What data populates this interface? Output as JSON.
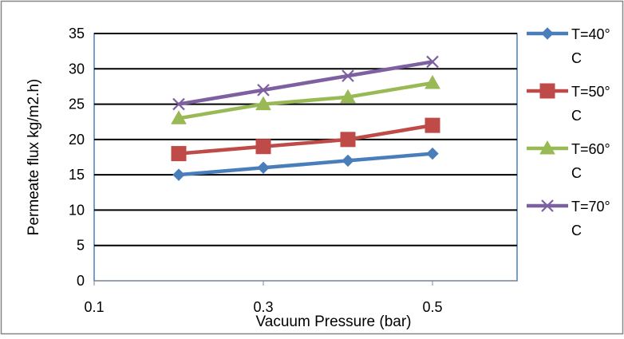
{
  "chart_data": {
    "type": "line",
    "title": "",
    "xlabel": "Vacuum Pressure (bar)",
    "ylabel": "Permeate flux kg/m2.h)",
    "x": [
      0.2,
      0.3,
      0.4,
      0.5
    ],
    "xlim": [
      0.1,
      0.6
    ],
    "ylim": [
      0,
      35
    ],
    "x_ticks": [
      {
        "value": 0.1,
        "label": "0.1"
      },
      {
        "value": 0.3,
        "label": "0.3"
      },
      {
        "value": 0.5,
        "label": "0.5"
      }
    ],
    "y_ticks": [
      {
        "value": 0,
        "label": "0"
      },
      {
        "value": 5,
        "label": "5"
      },
      {
        "value": 10,
        "label": "10"
      },
      {
        "value": 15,
        "label": "15"
      },
      {
        "value": 20,
        "label": "20"
      },
      {
        "value": 25,
        "label": "25"
      },
      {
        "value": 30,
        "label": "30"
      },
      {
        "value": 35,
        "label": "35"
      }
    ],
    "grid": "horizontal",
    "legend_position": "right",
    "series": [
      {
        "name_line1": "T=40°",
        "name_line2": "C",
        "color": "#4a7ebb",
        "marker": "diamond",
        "values": [
          15,
          16,
          17,
          18
        ]
      },
      {
        "name_line1": "T=50°",
        "name_line2": "C",
        "color": "#be4b48",
        "marker": "square",
        "values": [
          18,
          19,
          20,
          22
        ]
      },
      {
        "name_line1": "T=60°",
        "name_line2": "C",
        "color": "#98b954",
        "marker": "triangle",
        "values": [
          23,
          25,
          26,
          28
        ]
      },
      {
        "name_line1": "T=70°",
        "name_line2": "C",
        "color": "#7d60a0",
        "marker": "x",
        "values": [
          25,
          27,
          29,
          31
        ]
      }
    ]
  }
}
